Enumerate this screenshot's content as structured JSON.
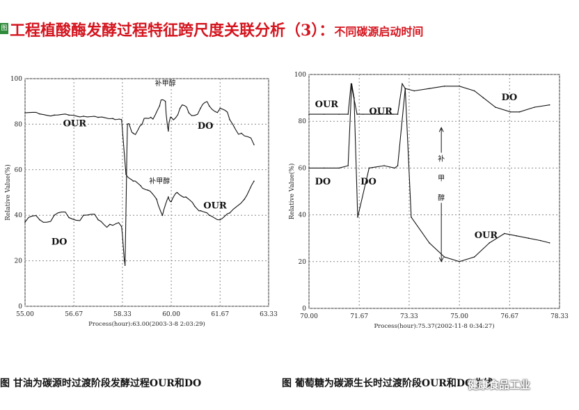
{
  "tag": "图",
  "title": {
    "main": "工程植酸酶发酵过程特征跨尺度关联分析（3）：",
    "sub": "不同碳源启动时间"
  },
  "captions": {
    "left": "图 甘油为碳源时过渡阶段发酵过程OUR和DO",
    "right": "图  葡萄糖为碳源生长时过渡阶段OUR和DO曲线"
  },
  "watermark": "健康食品工业",
  "chart_data": [
    {
      "type": "line",
      "ylabel": "Relative Value(%)",
      "xlabel": "Process(hour):63.00(2003-3-8 2:03:29)",
      "xlim": [
        55.0,
        63.33
      ],
      "ylim": [
        0,
        100
      ],
      "x_ticks": [
        "55.00",
        "56.67",
        "58.33",
        "60.00",
        "61.67",
        "63.33"
      ],
      "y_ticks": [
        "0",
        "20",
        "40",
        "60",
        "80",
        "100"
      ],
      "grid": true,
      "annotations": [
        {
          "text": "补甲醇",
          "x": 59.8,
          "y": 97
        },
        {
          "text": "补甲醇",
          "x": 59.6,
          "y": 54
        }
      ],
      "series": [
        {
          "name": "OUR",
          "x": [
            55.0,
            55.5,
            56.0,
            56.5,
            57.0,
            57.5,
            58.0,
            58.3,
            58.45,
            58.7,
            58.95,
            59.2,
            59.5,
            59.7,
            59.9,
            60.0,
            60.2,
            60.5,
            60.8,
            61.0,
            61.3,
            61.67,
            62.0,
            62.5,
            62.83
          ],
          "values": [
            85,
            84.5,
            84,
            84,
            83.5,
            83,
            82.5,
            82,
            58,
            55,
            53,
            51,
            47,
            40,
            48,
            46,
            50,
            48,
            44,
            42,
            40,
            38,
            41,
            47,
            55
          ]
        },
        {
          "name": "DO",
          "x": [
            55.0,
            55.5,
            56.0,
            56.5,
            57.0,
            57.5,
            57.9,
            58.3,
            58.42,
            58.5,
            58.7,
            59.0,
            59.3,
            59.6,
            59.8,
            59.9,
            60.0,
            60.3,
            60.6,
            61.0,
            61.3,
            61.67,
            62.0,
            62.4,
            62.83
          ],
          "values": [
            37,
            38,
            40,
            39,
            40,
            38,
            36,
            35,
            18,
            80,
            76,
            80,
            83,
            88,
            90,
            77,
            83,
            87,
            85,
            87,
            88,
            87,
            82,
            76,
            71
          ]
        }
      ]
    },
    {
      "type": "line",
      "ylabel": "Relative Value(%)",
      "xlabel": "Process(hour):75.37(2002-11-8 0:34:27)",
      "xlim": [
        70.0,
        78.33
      ],
      "ylim": [
        0,
        100
      ],
      "x_ticks": [
        "70.00",
        "71.67",
        "73.33",
        "75.00",
        "76.67",
        "78.33"
      ],
      "y_ticks": [
        "0",
        "20",
        "40",
        "60",
        "80",
        "100"
      ],
      "grid": true,
      "annotations": [
        {
          "text": "补甲醇",
          "x": 74.4,
          "y": 60
        }
      ],
      "series": [
        {
          "name": "OUR",
          "x": [
            70.0,
            70.5,
            71.0,
            71.3,
            71.4,
            71.6,
            71.8,
            72.3,
            72.8,
            72.95,
            73.1,
            73.2,
            73.4,
            74.0,
            74.5,
            75.0,
            75.5,
            76.0,
            76.5,
            76.9,
            77.3,
            77.7,
            78.0
          ],
          "values": [
            83,
            83,
            83,
            83,
            96,
            83,
            83,
            83,
            83,
            83,
            96,
            94,
            39,
            28,
            22,
            20,
            22,
            28,
            32,
            31,
            30,
            29,
            28
          ]
        },
        {
          "name": "DO",
          "x": [
            70.0,
            70.5,
            71.0,
            71.3,
            71.42,
            71.5,
            71.62,
            72.0,
            72.5,
            72.85,
            72.95,
            73.2,
            73.5,
            74.0,
            74.5,
            75.0,
            75.5,
            75.8,
            76.2,
            76.7,
            77.0,
            77.5,
            78.0
          ],
          "values": [
            60,
            60,
            60,
            61,
            96,
            90,
            39,
            60,
            61,
            60,
            61,
            94,
            93,
            94,
            95,
            95,
            93,
            90,
            86,
            84,
            84,
            86,
            87
          ]
        }
      ]
    }
  ]
}
